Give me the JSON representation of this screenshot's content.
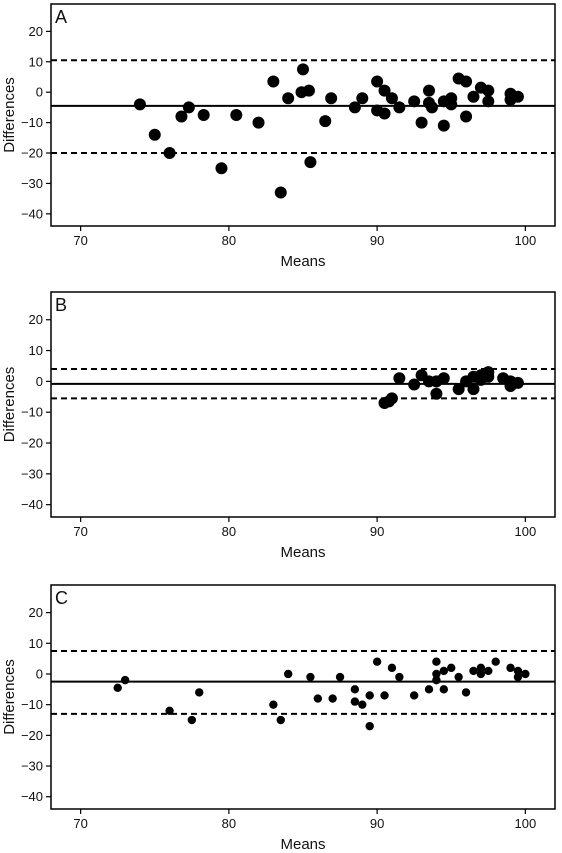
{
  "chart_data": [
    {
      "type": "scatter",
      "panel_label": "A",
      "xlabel": "Means",
      "ylabel": "Differences",
      "xlim": [
        68,
        102
      ],
      "ylim": [
        -44,
        29
      ],
      "xticks": [
        70,
        80,
        90,
        100
      ],
      "yticks": [
        20,
        10,
        0,
        -10,
        -20,
        -30,
        -40
      ],
      "grid": false,
      "mean_line": -4.5,
      "limits_of_agreement": [
        10.5,
        -20
      ],
      "points": [
        [
          74,
          -4
        ],
        [
          75,
          -14
        ],
        [
          76,
          -20
        ],
        [
          76.8,
          -8
        ],
        [
          77.3,
          -5
        ],
        [
          78.3,
          -7.5
        ],
        [
          79.5,
          -25
        ],
        [
          80.5,
          -7.5
        ],
        [
          82,
          -10
        ],
        [
          83,
          3.5
        ],
        [
          83.5,
          -33
        ],
        [
          84,
          -2
        ],
        [
          84.9,
          0
        ],
        [
          85,
          7.5
        ],
        [
          85.4,
          0.5
        ],
        [
          85.5,
          -23
        ],
        [
          86.5,
          -9.5
        ],
        [
          86.9,
          -2
        ],
        [
          88.5,
          -5
        ],
        [
          89,
          -2
        ],
        [
          90,
          3.5
        ],
        [
          90,
          -6
        ],
        [
          90.5,
          0.5
        ],
        [
          90.5,
          -7
        ],
        [
          91,
          -2
        ],
        [
          91.5,
          -5
        ],
        [
          92.5,
          -3
        ],
        [
          93,
          -10
        ],
        [
          93.5,
          0.5
        ],
        [
          93.5,
          -3.5
        ],
        [
          93.7,
          -5
        ],
        [
          94.5,
          -3
        ],
        [
          94.5,
          -11
        ],
        [
          95,
          -4
        ],
        [
          95,
          -2
        ],
        [
          95.5,
          4.5
        ],
        [
          96,
          3.5
        ],
        [
          96,
          -8
        ],
        [
          96.5,
          -1.5
        ],
        [
          97,
          1.5
        ],
        [
          97.5,
          0.5
        ],
        [
          97.5,
          -3
        ],
        [
          99,
          -0.5
        ],
        [
          99,
          -2.5
        ],
        [
          99.5,
          -1.5
        ]
      ]
    },
    {
      "type": "scatter",
      "panel_label": "B",
      "xlabel": "Means",
      "ylabel": "Differences",
      "xlim": [
        68,
        102
      ],
      "ylim": [
        -44,
        29
      ],
      "xticks": [
        70,
        80,
        90,
        100
      ],
      "yticks": [
        20,
        10,
        0,
        -10,
        -20,
        -30,
        -40
      ],
      "grid": false,
      "mean_line": -0.8,
      "limits_of_agreement": [
        4,
        -5.5
      ],
      "points": [
        [
          90.5,
          -7
        ],
        [
          90.8,
          -6.5
        ],
        [
          91,
          -5.5
        ],
        [
          91.5,
          1
        ],
        [
          92.5,
          -1
        ],
        [
          93,
          2
        ],
        [
          93.5,
          0
        ],
        [
          94,
          -4
        ],
        [
          94,
          0
        ],
        [
          94.5,
          1
        ],
        [
          95.5,
          -2.5
        ],
        [
          96,
          0
        ],
        [
          96.5,
          1.5
        ],
        [
          96.5,
          -2.5
        ],
        [
          97,
          2
        ],
        [
          97,
          0.5
        ],
        [
          97.5,
          3
        ],
        [
          97.5,
          1.5
        ],
        [
          98.5,
          1
        ],
        [
          99,
          0
        ],
        [
          99,
          -1.5
        ],
        [
          99.5,
          -0.5
        ]
      ]
    },
    {
      "type": "scatter",
      "panel_label": "C",
      "xlabel": "Means",
      "ylabel": "Differences",
      "xlim": [
        68,
        102
      ],
      "ylim": [
        -44,
        29
      ],
      "xticks": [
        70,
        80,
        90,
        100
      ],
      "yticks": [
        20,
        10,
        0,
        -10,
        -20,
        -30,
        -40
      ],
      "grid": false,
      "mean_line": -2.5,
      "limits_of_agreement": [
        7.5,
        -13
      ],
      "points": [
        [
          72.5,
          -4.5
        ],
        [
          73,
          -2
        ],
        [
          76,
          -12
        ],
        [
          77.5,
          -15
        ],
        [
          78,
          -6
        ],
        [
          83,
          -10
        ],
        [
          83.5,
          -15
        ],
        [
          84,
          0
        ],
        [
          85.5,
          -1
        ],
        [
          86,
          -8
        ],
        [
          87,
          -8
        ],
        [
          87.5,
          -1
        ],
        [
          88.5,
          -5
        ],
        [
          88.5,
          -9
        ],
        [
          89,
          -10
        ],
        [
          89.5,
          -7
        ],
        [
          89.5,
          -17
        ],
        [
          90,
          4
        ],
        [
          90.5,
          -7
        ],
        [
          91,
          2
        ],
        [
          91.5,
          -1
        ],
        [
          92.5,
          -7
        ],
        [
          93.5,
          -5
        ],
        [
          94,
          4
        ],
        [
          94,
          0
        ],
        [
          94,
          -2
        ],
        [
          94.5,
          1
        ],
        [
          94.5,
          -5
        ],
        [
          95,
          2
        ],
        [
          95.5,
          -1
        ],
        [
          96,
          -6
        ],
        [
          96.5,
          1
        ],
        [
          97,
          2
        ],
        [
          97,
          0
        ],
        [
          97.5,
          1
        ],
        [
          98,
          4
        ],
        [
          99,
          2
        ],
        [
          99.5,
          1
        ],
        [
          99.5,
          -1
        ],
        [
          100,
          0
        ]
      ]
    }
  ]
}
